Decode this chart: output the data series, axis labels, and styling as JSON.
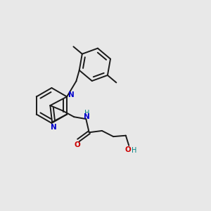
{
  "background_color": "#e8e8e8",
  "bond_color": "#1a1a1a",
  "N_color": "#0000cc",
  "O_color": "#cc0000",
  "NH_color": "#008080",
  "lw": 1.4,
  "figsize": [
    3.0,
    3.0
  ],
  "dpi": 100,
  "xlim": [
    -1.5,
    8.5
  ],
  "ylim": [
    -1.5,
    8.5
  ]
}
